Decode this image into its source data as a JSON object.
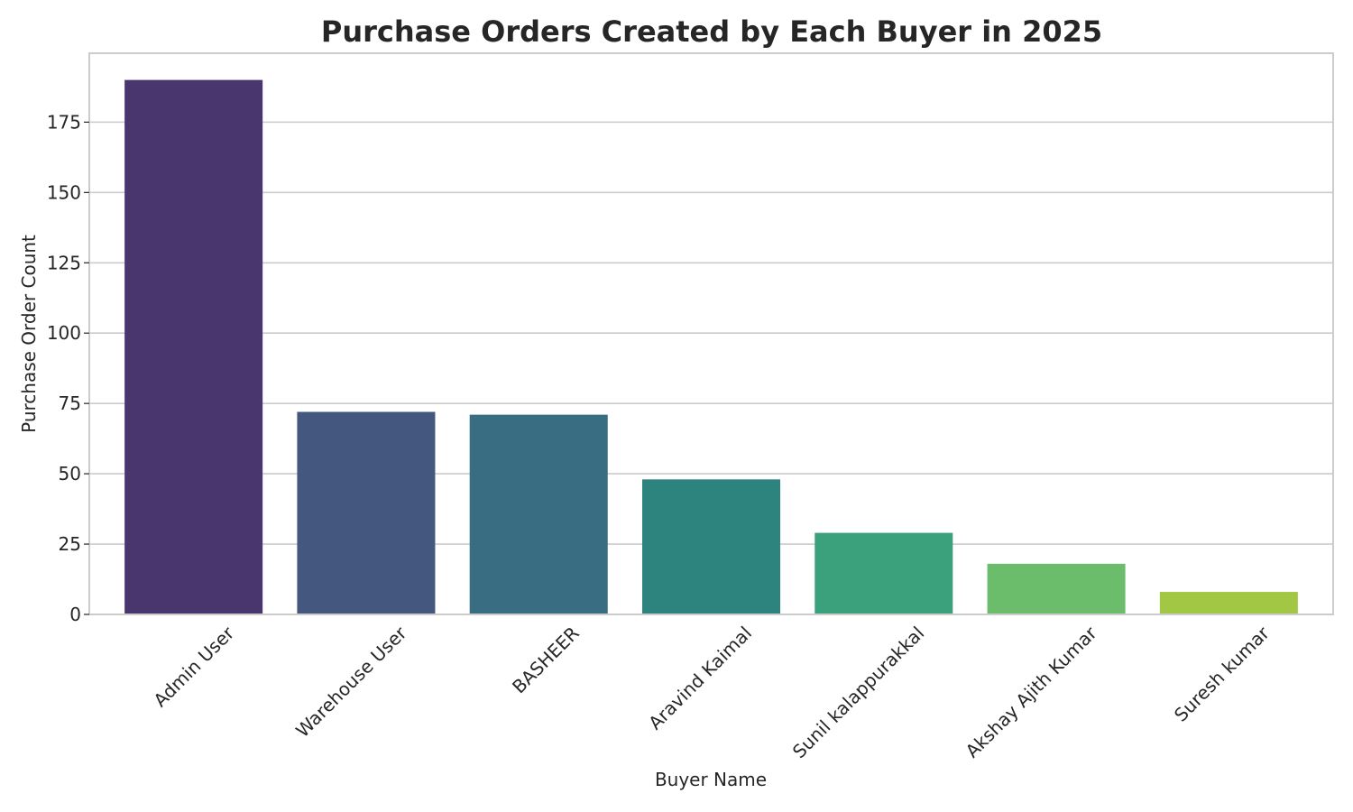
{
  "chart_data": {
    "type": "bar",
    "title": "Purchase Orders Created by Each Buyer in 2025",
    "xlabel": "Buyer Name",
    "ylabel": "Purchase Order Count",
    "categories": [
      "Admin User",
      "Warehouse User",
      "BASHEER",
      "Aravind Kaimal",
      "Sunil kalappurakkal",
      "Akshay Ajith Kumar",
      "Suresh kumar"
    ],
    "values": [
      190,
      72,
      71,
      48,
      29,
      18,
      8
    ],
    "colors": [
      "#4a366f",
      "#44587f",
      "#396d82",
      "#2d837e",
      "#3ba07c",
      "#6bbd6b",
      "#a2c744"
    ],
    "ylim": [
      0,
      199.5
    ],
    "yticks": [
      0,
      25,
      50,
      75,
      100,
      125,
      150,
      175
    ],
    "grid": "horizontal",
    "legend": "none"
  }
}
